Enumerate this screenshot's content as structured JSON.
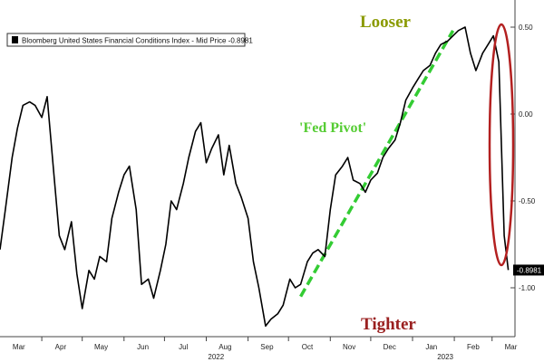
{
  "chart_data": {
    "type": "line",
    "title": "",
    "legend": {
      "label": "Bloomberg United States Financial Conditions Index - Mid Price -0.8981",
      "placement": "top-left"
    },
    "x_tick_labels": [
      "Mar",
      "Apr",
      "May",
      "Jun",
      "Jul",
      "Aug",
      "Sep",
      "Oct",
      "Nov",
      "Dec",
      "Jan",
      "Feb",
      "Mar"
    ],
    "year_labels": [
      "2022",
      "2023"
    ],
    "y_ticks": [
      0.5,
      0.0,
      -0.5,
      -1.0
    ],
    "y_tick_labels": [
      "0.50",
      "0.00",
      "-0.50",
      "-1.00"
    ],
    "ylim": [
      -1.3,
      0.63
    ],
    "grid": false,
    "y_axis_side": "right",
    "series": [
      {
        "name": "Bloomberg United States Financial Conditions Index",
        "color": "#000000",
        "x": [
          "2022-03-01",
          "2022-03-05",
          "2022-03-10",
          "2022-03-14",
          "2022-03-18",
          "2022-03-23",
          "2022-03-27",
          "2022-04-01",
          "2022-04-05",
          "2022-04-10",
          "2022-04-14",
          "2022-04-18",
          "2022-04-23",
          "2022-04-27",
          "2022-05-01",
          "2022-05-06",
          "2022-05-10",
          "2022-05-14",
          "2022-05-19",
          "2022-05-23",
          "2022-05-28",
          "2022-06-01",
          "2022-06-05",
          "2022-06-10",
          "2022-06-14",
          "2022-06-19",
          "2022-06-23",
          "2022-06-28",
          "2022-07-02",
          "2022-07-06",
          "2022-07-10",
          "2022-07-15",
          "2022-07-19",
          "2022-07-24",
          "2022-07-28",
          "2022-08-01",
          "2022-08-05",
          "2022-08-10",
          "2022-08-14",
          "2022-08-18",
          "2022-08-23",
          "2022-08-27",
          "2022-09-01",
          "2022-09-05",
          "2022-09-09",
          "2022-09-14",
          "2022-09-18",
          "2022-09-23",
          "2022-09-27",
          "2022-10-02",
          "2022-10-06",
          "2022-10-10",
          "2022-10-15",
          "2022-10-19",
          "2022-10-23",
          "2022-10-28",
          "2022-11-01",
          "2022-11-05",
          "2022-11-10",
          "2022-11-14",
          "2022-11-18",
          "2022-11-23",
          "2022-11-27",
          "2022-12-01",
          "2022-12-06",
          "2022-12-10",
          "2022-12-14",
          "2022-12-19",
          "2022-12-23",
          "2022-12-27",
          "2023-01-01",
          "2023-01-05",
          "2023-01-09",
          "2023-01-14",
          "2023-01-18",
          "2023-01-22",
          "2023-01-27",
          "2023-01-31",
          "2023-02-04",
          "2023-02-09",
          "2023-02-13",
          "2023-02-17",
          "2023-02-22",
          "2023-02-26",
          "2023-03-02",
          "2023-03-06",
          "2023-03-10",
          "2023-03-13"
        ],
        "y": [
          -0.78,
          -0.55,
          -0.25,
          -0.08,
          0.05,
          0.07,
          0.05,
          -0.02,
          0.1,
          -0.35,
          -0.7,
          -0.78,
          -0.62,
          -0.92,
          -1.12,
          -0.9,
          -0.95,
          -0.82,
          -0.85,
          -0.6,
          -0.45,
          -0.35,
          -0.3,
          -0.55,
          -0.98,
          -0.95,
          -1.06,
          -0.9,
          -0.75,
          -0.5,
          -0.55,
          -0.4,
          -0.25,
          -0.1,
          -0.05,
          -0.28,
          -0.2,
          -0.12,
          -0.35,
          -0.18,
          -0.4,
          -0.48,
          -0.6,
          -0.85,
          -1.0,
          -1.22,
          -1.18,
          -1.15,
          -1.1,
          -0.95,
          -1.0,
          -0.98,
          -0.85,
          -0.8,
          -0.78,
          -0.82,
          -0.55,
          -0.35,
          -0.3,
          -0.25,
          -0.38,
          -0.4,
          -0.45,
          -0.38,
          -0.34,
          -0.25,
          -0.2,
          -0.15,
          -0.05,
          0.08,
          0.15,
          0.2,
          0.25,
          0.28,
          0.35,
          0.4,
          0.42,
          0.45,
          0.48,
          0.5,
          0.35,
          0.25,
          0.35,
          0.4,
          0.45,
          0.3,
          -0.7,
          -0.8981
        ]
      },
      {
        "name": "",
        "color": "#33cc33",
        "style": "dashed",
        "x": [
          "2022-10-10",
          "2023-01-31"
        ],
        "y": [
          -1.05,
          0.48
        ]
      }
    ],
    "last_value_label": "-0.8981",
    "annotations": [
      {
        "text": "Looser",
        "color": "#8a9a00"
      },
      {
        "text": "'Fed Pivot'",
        "color": "#55cc33"
      },
      {
        "text": "Tighter",
        "color": "#9a2020"
      }
    ],
    "highlight_ellipse_color": "#b32020"
  }
}
